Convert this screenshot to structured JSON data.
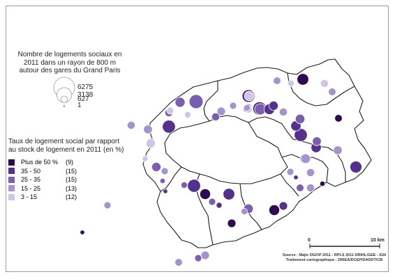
{
  "legend_size": {
    "title": "Nombre de logements sociaux en 2011 dans un rayon de 800 m autour des gares du Grand Paris",
    "items": [
      {
        "label": "6275",
        "value": 6275
      },
      {
        "label": "3138",
        "value": 3138
      },
      {
        "label": "627",
        "value": 627
      },
      {
        "label": "1",
        "value": 1
      }
    ]
  },
  "legend_color": {
    "title": "Taux de logement social par rapport au stock de logement en 2011 (en %)",
    "classes": [
      {
        "label": "Plus de 50 %",
        "count": "(9)",
        "color": "#2d0a52"
      },
      {
        "label": "35 - 50",
        "count": "(15)",
        "color": "#54318c"
      },
      {
        "label": "25 - 35",
        "count": "(15)",
        "color": "#7a5fb0"
      },
      {
        "label": "15 - 25",
        "count": "(13)",
        "color": "#a692cf"
      },
      {
        "label": "3 - 15",
        "count": "(12)",
        "color": "#cfc6ea"
      }
    ]
  },
  "scale": {
    "start": "0",
    "end": "10 km"
  },
  "source": {
    "line1": "Source : Majic DGFiP 2011 - RPLS 2011 DRIHL/GEE - IGN",
    "line2": "Traitement cartographique : DRIEA/DCEP/DADDT/CB"
  },
  "stations": [
    {
      "v": 1400,
      "c": 3
    },
    {
      "v": 2800,
      "c": 3
    },
    {
      "v": 900,
      "c": 3
    },
    {
      "v": 2400,
      "c": 2
    },
    {
      "v": 1100,
      "c": 4
    },
    {
      "v": 900,
      "c": 4
    },
    {
      "v": 700,
      "c": 5
    },
    {
      "v": 600,
      "c": 5
    },
    {
      "v": 1000,
      "c": 4
    },
    {
      "v": 900,
      "c": 3
    },
    {
      "v": 700,
      "c": 4
    },
    {
      "v": 600,
      "c": 4
    },
    {
      "v": 800,
      "c": 5
    },
    {
      "v": 1300,
      "c": 5
    },
    {
      "v": 800,
      "c": 4
    },
    {
      "v": 900,
      "c": 4
    },
    {
      "v": 1800,
      "c": 3
    },
    {
      "v": 1200,
      "c": 2
    },
    {
      "v": 600,
      "c": 5
    },
    {
      "v": 2300,
      "c": 2
    },
    {
      "v": 1200,
      "c": 3
    },
    {
      "v": 2600,
      "c": 2
    },
    {
      "v": 1600,
      "c": 2
    },
    {
      "v": 1900,
      "c": 1
    },
    {
      "v": 900,
      "c": 5
    },
    {
      "v": 800,
      "c": 4
    },
    {
      "v": 800,
      "c": 1
    },
    {
      "v": 1300,
      "c": 3
    },
    {
      "v": 1500,
      "c": 2
    },
    {
      "v": 2400,
      "c": 2
    },
    {
      "v": 1300,
      "c": 4
    },
    {
      "v": 1100,
      "c": 3
    },
    {
      "v": 1100,
      "c": 4
    },
    {
      "v": 1400,
      "c": 3
    },
    {
      "v": 2000,
      "c": 2
    },
    {
      "v": 1200,
      "c": 3
    },
    {
      "v": 700,
      "c": 4
    },
    {
      "v": 600,
      "c": 3
    },
    {
      "v": 2400,
      "c": 2
    },
    {
      "v": 1600,
      "c": 1
    },
    {
      "v": 700,
      "c": 3
    },
    {
      "v": 500,
      "c": 2
    },
    {
      "v": 1900,
      "c": 2
    },
    {
      "v": 1000,
      "c": 1
    },
    {
      "v": 600,
      "c": 4
    },
    {
      "v": 1300,
      "c": 3
    },
    {
      "v": 1600,
      "c": 1
    },
    {
      "v": 1000,
      "c": 2
    },
    {
      "v": 800,
      "c": 3
    },
    {
      "v": 900,
      "c": 4
    },
    {
      "v": 400,
      "c": 1
    },
    {
      "v": 300,
      "c": 2
    },
    {
      "v": 700,
      "c": 4
    },
    {
      "v": 300,
      "c": 1
    },
    {
      "v": 1000,
      "c": 4
    },
    {
      "v": 700,
      "c": 3
    },
    {
      "v": 800,
      "c": 4
    },
    {
      "v": 1200,
      "c": 5
    },
    {
      "v": 500,
      "c": 5
    },
    {
      "v": 400,
      "c": 3
    },
    {
      "v": 300,
      "c": 2
    },
    {
      "v": 700,
      "c": 4
    },
    {
      "v": 1500,
      "c": 2
    },
    {
      "v": 900,
      "c": 4
    }
  ]
}
